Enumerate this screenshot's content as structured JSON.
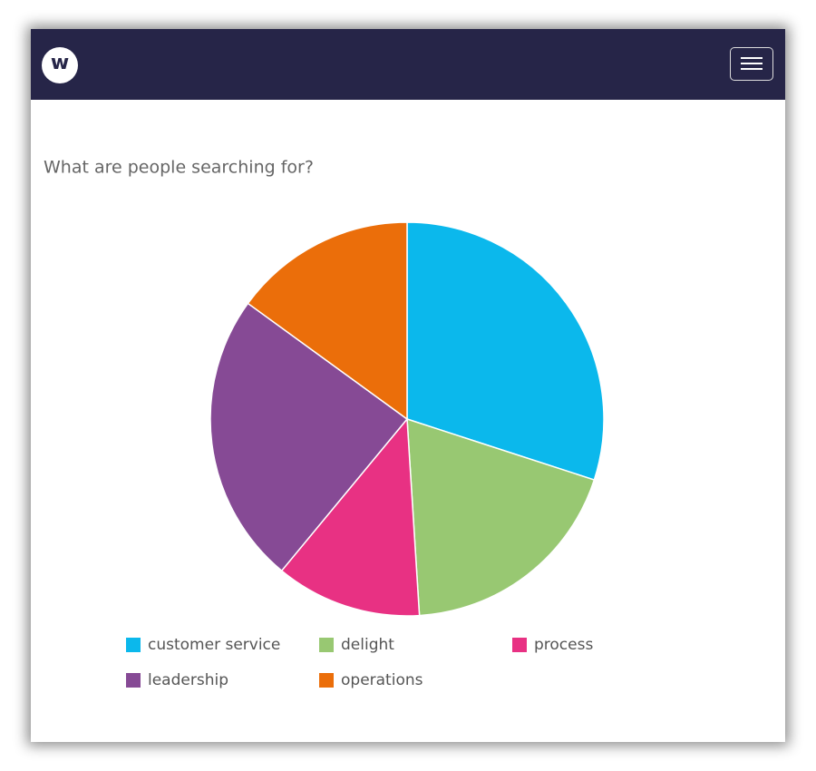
{
  "header": {
    "logo": "w"
  },
  "chart_data": {
    "type": "pie",
    "title": "What are people searching for?",
    "categories": [
      "customer service",
      "delight",
      "process",
      "leadership",
      "operations"
    ],
    "values": [
      30,
      19,
      12,
      24,
      15
    ],
    "colors": [
      "#0bb8ec",
      "#98c872",
      "#e83183",
      "#864a95",
      "#eb6e0a"
    ]
  }
}
